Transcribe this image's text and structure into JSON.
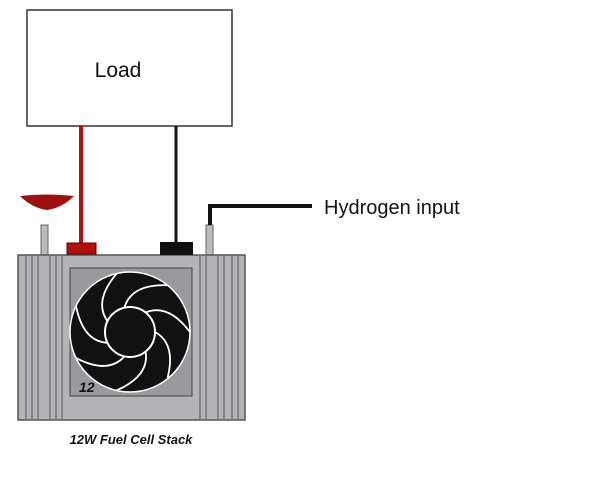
{
  "load": {
    "label": "Load"
  },
  "hydrogen": {
    "label": "Hydrogen input"
  },
  "stack": {
    "label": "12W Fuel Cell Stack",
    "fan_label": "12"
  }
}
